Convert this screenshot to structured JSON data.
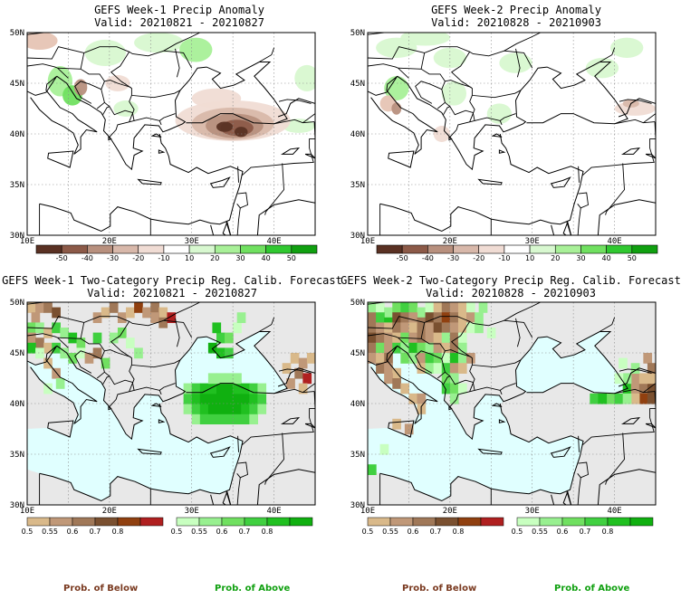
{
  "panels": [
    {
      "title": "GEFS Week-1 Precip Anomaly",
      "valid": "Valid: 20210821 - 20210827"
    },
    {
      "title": "GEFS Week-2 Precip Anomaly",
      "valid": "Valid: 20210828 - 20210903"
    },
    {
      "title": "GEFS Week-1 Two-Category Precip Reg. Calib. Forecast",
      "valid": "Valid: 20210821 - 20210827"
    },
    {
      "title": "GEFS Week-2 Two-Category Precip Reg. Calib. Forecast",
      "valid": "Valid: 20210828 - 20210903"
    }
  ],
  "lat_labels": [
    "50N",
    "45N",
    "40N",
    "35N",
    "30N"
  ],
  "lon_labels": [
    "10E",
    "20E",
    "30E",
    "40E"
  ],
  "anomaly_colorbar": {
    "ticks": [
      "-50",
      "-40",
      "-30",
      "-20",
      "-10",
      "10",
      "20",
      "30",
      "40",
      "50"
    ],
    "colors": [
      "#5a3123",
      "#8c5a48",
      "#b8907e",
      "#d8b8aa",
      "#f0dcd4",
      "#ffffff",
      "#d8f8d0",
      "#a8f098",
      "#70e060",
      "#30c830",
      "#10a010"
    ]
  },
  "prob_colorbar": {
    "ticks": [
      "0.5",
      "0.55",
      "0.6",
      "0.7",
      "0.8"
    ],
    "below_colors": [
      "#d9b98a",
      "#c09878",
      "#a07858",
      "#7a5030",
      "#904010",
      "#b02020"
    ],
    "above_colors": [
      "#c8ffc0",
      "#98f090",
      "#70e060",
      "#40d040",
      "#20c020",
      "#10b010"
    ]
  },
  "legend": {
    "below": "Prob. of Below",
    "above": "Prob. of Above"
  },
  "colors": {
    "land": "#e8e8e8",
    "sea": "#e0ffff",
    "below": "#8b3a1a",
    "above": "#10b010"
  }
}
